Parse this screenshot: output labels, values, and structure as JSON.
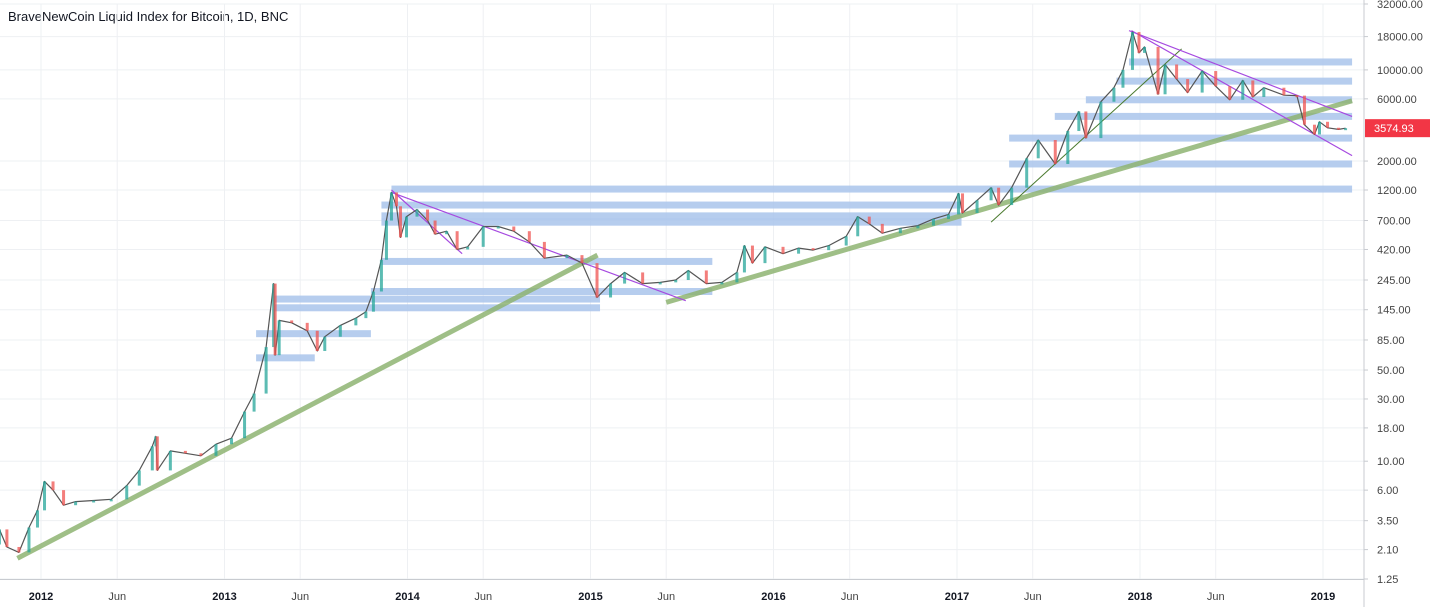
{
  "title": "BraveNewCoin Liquid Index for Bitcoin, 1D, BNC",
  "last_price_label": "3574.93",
  "colors": {
    "up": "#26a69a",
    "down": "#ef5350",
    "price_line": "#555555",
    "price_badge": "#f23645",
    "support": "#8fb473",
    "trend": "#a64ae0",
    "zone": "#a9c4eb",
    "grid": "#eef0f3",
    "axis_text": "#444444"
  },
  "chart_data": {
    "type": "line",
    "scale": "log",
    "ylim": [
      1.25,
      32000
    ],
    "y_ticks": [
      {
        "v": 32000,
        "label": "32000.00"
      },
      {
        "v": 18000,
        "label": "18000.00"
      },
      {
        "v": 10000,
        "label": "10000.00"
      },
      {
        "v": 6000,
        "label": "6000.00"
      },
      {
        "v": 3574.93,
        "label": "3574.93"
      },
      {
        "v": 2000,
        "label": "2000.00"
      },
      {
        "v": 1200,
        "label": "1200.00"
      },
      {
        "v": 700,
        "label": "700.00"
      },
      {
        "v": 420,
        "label": "420.00"
      },
      {
        "v": 245,
        "label": "245.00"
      },
      {
        "v": 145,
        "label": "145.00"
      },
      {
        "v": 85,
        "label": "85.00"
      },
      {
        "v": 50,
        "label": "50.00"
      },
      {
        "v": 30,
        "label": "30.00"
      },
      {
        "v": 18,
        "label": "18.00"
      },
      {
        "v": 10,
        "label": "10.00"
      },
      {
        "v": 6,
        "label": "6.00"
      },
      {
        "v": 3.5,
        "label": "3.50"
      },
      {
        "v": 2.1,
        "label": "2.10"
      },
      {
        "v": 1.25,
        "label": "1.25"
      }
    ],
    "xlim": [
      "2011-09-01",
      "2019-03-01"
    ],
    "x_ticks": [
      {
        "date": "2012-01-01",
        "label": "2012",
        "major": true
      },
      {
        "date": "2012-06-01",
        "label": "Jun",
        "major": false
      },
      {
        "date": "2013-01-01",
        "label": "2013",
        "major": true
      },
      {
        "date": "2013-06-01",
        "label": "Jun",
        "major": false
      },
      {
        "date": "2014-01-01",
        "label": "2014",
        "major": true
      },
      {
        "date": "2014-06-01",
        "label": "Jun",
        "major": false
      },
      {
        "date": "2015-01-01",
        "label": "2015",
        "major": true
      },
      {
        "date": "2015-06-01",
        "label": "Jun",
        "major": false
      },
      {
        "date": "2016-01-01",
        "label": "2016",
        "major": true
      },
      {
        "date": "2016-06-01",
        "label": "Jun",
        "major": false
      },
      {
        "date": "2017-01-01",
        "label": "2017",
        "major": true
      },
      {
        "date": "2017-06-01",
        "label": "Jun",
        "major": false
      },
      {
        "date": "2018-01-01",
        "label": "2018",
        "major": true
      },
      {
        "date": "2018-06-01",
        "label": "Jun",
        "major": false
      },
      {
        "date": "2019-01-01",
        "label": "2019",
        "major": true
      }
    ],
    "grid": true,
    "series": [
      {
        "points": [
          [
            "2011-09-01",
            3.0
          ],
          [
            "2011-09-20",
            2.3
          ],
          [
            "2011-10-10",
            3.0
          ],
          [
            "2011-10-25",
            2.2
          ],
          [
            "2011-11-18",
            2.0
          ],
          [
            "2011-12-08",
            3.1
          ],
          [
            "2011-12-25",
            4.2
          ],
          [
            "2012-01-08",
            7.0
          ],
          [
            "2012-01-25",
            6.0
          ],
          [
            "2012-02-15",
            4.6
          ],
          [
            "2012-03-10",
            4.9
          ],
          [
            "2012-04-15",
            5.0
          ],
          [
            "2012-05-20",
            5.1
          ],
          [
            "2012-06-20",
            6.5
          ],
          [
            "2012-07-15",
            8.5
          ],
          [
            "2012-08-10",
            13.0
          ],
          [
            "2012-08-17",
            15.5
          ],
          [
            "2012-08-20",
            8.5
          ],
          [
            "2012-09-15",
            12.0
          ],
          [
            "2012-10-15",
            11.5
          ],
          [
            "2012-11-15",
            11.0
          ],
          [
            "2012-12-15",
            13.5
          ],
          [
            "2013-01-15",
            15.0
          ],
          [
            "2013-02-10",
            24.0
          ],
          [
            "2013-03-01",
            33.0
          ],
          [
            "2013-03-25",
            75.0
          ],
          [
            "2013-04-09",
            230.0
          ],
          [
            "2013-04-12",
            65.0
          ],
          [
            "2013-04-20",
            120.0
          ],
          [
            "2013-05-15",
            115.0
          ],
          [
            "2013-06-15",
            100.0
          ],
          [
            "2013-07-05",
            70.0
          ],
          [
            "2013-07-20",
            90.0
          ],
          [
            "2013-08-20",
            110.0
          ],
          [
            "2013-09-20",
            125.0
          ],
          [
            "2013-10-10",
            140.0
          ],
          [
            "2013-10-25",
            200.0
          ],
          [
            "2013-11-10",
            350.0
          ],
          [
            "2013-11-20",
            700.0
          ],
          [
            "2013-11-30",
            1150.0
          ],
          [
            "2013-12-10",
            900.0
          ],
          [
            "2013-12-18",
            520.0
          ],
          [
            "2013-12-30",
            750.0
          ],
          [
            "2014-01-20",
            850.0
          ],
          [
            "2014-02-10",
            700.0
          ],
          [
            "2014-02-25",
            550.0
          ],
          [
            "2014-03-20",
            580.0
          ],
          [
            "2014-04-10",
            420.0
          ],
          [
            "2014-05-01",
            440.0
          ],
          [
            "2014-06-01",
            630.0
          ],
          [
            "2014-07-01",
            630.0
          ],
          [
            "2014-08-01",
            580.0
          ],
          [
            "2014-09-01",
            480.0
          ],
          [
            "2014-10-01",
            360.0
          ],
          [
            "2014-11-15",
            380.0
          ],
          [
            "2014-12-15",
            330.0
          ],
          [
            "2015-01-14",
            180.0
          ],
          [
            "2015-02-10",
            230.0
          ],
          [
            "2015-03-10",
            280.0
          ],
          [
            "2015-04-15",
            230.0
          ],
          [
            "2015-05-20",
            235.0
          ],
          [
            "2015-06-20",
            245.0
          ],
          [
            "2015-07-15",
            290.0
          ],
          [
            "2015-08-20",
            230.0
          ],
          [
            "2015-09-20",
            235.0
          ],
          [
            "2015-10-20",
            280.0
          ],
          [
            "2015-11-04",
            450.0
          ],
          [
            "2015-11-20",
            330.0
          ],
          [
            "2015-12-15",
            440.0
          ],
          [
            "2016-01-20",
            390.0
          ],
          [
            "2016-02-20",
            430.0
          ],
          [
            "2016-03-20",
            415.0
          ],
          [
            "2016-04-20",
            450.0
          ],
          [
            "2016-05-25",
            530.0
          ],
          [
            "2016-06-17",
            750.0
          ],
          [
            "2016-07-10",
            660.0
          ],
          [
            "2016-08-05",
            560.0
          ],
          [
            "2016-09-10",
            610.0
          ],
          [
            "2016-10-15",
            640.0
          ],
          [
            "2016-11-15",
            720.0
          ],
          [
            "2016-12-15",
            780.0
          ],
          [
            "2017-01-04",
            1130.0
          ],
          [
            "2017-01-12",
            800.0
          ],
          [
            "2017-02-10",
            1000.0
          ],
          [
            "2017-03-10",
            1250.0
          ],
          [
            "2017-03-25",
            920.0
          ],
          [
            "2017-04-20",
            1250.0
          ],
          [
            "2017-05-20",
            2100.0
          ],
          [
            "2017-06-12",
            2900.0
          ],
          [
            "2017-07-16",
            1900.0
          ],
          [
            "2017-08-10",
            3400.0
          ],
          [
            "2017-09-01",
            4800.0
          ],
          [
            "2017-09-15",
            3000.0
          ],
          [
            "2017-10-15",
            5700.0
          ],
          [
            "2017-11-10",
            7300.0
          ],
          [
            "2017-11-28",
            10000.0
          ],
          [
            "2017-12-17",
            19500.0
          ],
          [
            "2017-12-30",
            13500.0
          ],
          [
            "2018-01-10",
            15000.0
          ],
          [
            "2018-02-06",
            6500.0
          ],
          [
            "2018-02-20",
            11000.0
          ],
          [
            "2018-03-15",
            8500.0
          ],
          [
            "2018-04-06",
            6700.0
          ],
          [
            "2018-05-05",
            9800.0
          ],
          [
            "2018-06-01",
            7500.0
          ],
          [
            "2018-06-29",
            5900.0
          ],
          [
            "2018-07-25",
            8300.0
          ],
          [
            "2018-08-14",
            6200.0
          ],
          [
            "2018-09-05",
            7300.0
          ],
          [
            "2018-10-15",
            6400.0
          ],
          [
            "2018-11-10",
            6350.0
          ],
          [
            "2018-11-25",
            3800.0
          ],
          [
            "2018-12-15",
            3200.0
          ],
          [
            "2018-12-25",
            4000.0
          ],
          [
            "2019-01-10",
            3600.0
          ],
          [
            "2019-02-01",
            3500.0
          ],
          [
            "2019-02-15",
            3574.93
          ]
        ]
      }
    ],
    "drawings": {
      "support_lines": [
        {
          "from": [
            "2011-11-15",
            1.8
          ],
          "to": [
            "2015-01-15",
            380.0
          ],
          "width": 5
        },
        {
          "from": [
            "2015-06-01",
            165.0
          ],
          "to": [
            "2019-02-28",
            5800.0
          ],
          "width": 5
        },
        {
          "from": [
            "2017-03-10",
            680.0
          ],
          "to": [
            "2018-03-25",
            14500.0
          ],
          "width": 1
        }
      ],
      "trend_lines": [
        {
          "from": [
            "2013-11-30",
            1200.0
          ],
          "to": [
            "2014-04-20",
            390.0
          ]
        },
        {
          "from": [
            "2013-11-30",
            1150.0
          ],
          "to": [
            "2015-07-10",
            170.0
          ]
        },
        {
          "from": [
            "2017-12-10",
            20000.0
          ],
          "to": [
            "2019-02-28",
            4400.0
          ]
        },
        {
          "from": [
            "2017-12-15",
            20000.0
          ],
          "to": [
            "2019-02-28",
            2200.0
          ]
        }
      ],
      "zones": [
        {
          "from": "2013-03-05",
          "to": "2013-06-30",
          "y": 62
        },
        {
          "from": "2013-03-05",
          "to": "2013-10-20",
          "y": 95
        },
        {
          "from": "2013-04-10",
          "to": "2015-01-20",
          "y": 175
        },
        {
          "from": "2013-04-10",
          "to": "2015-01-20",
          "y": 150
        },
        {
          "from": "2013-10-20",
          "to": "2015-09-01",
          "y": 200
        },
        {
          "from": "2013-11-10",
          "to": "2015-09-01",
          "y": 340
        },
        {
          "from": "2013-11-10",
          "to": "2017-01-10",
          "y": 680
        },
        {
          "from": "2013-11-10",
          "to": "2017-01-10",
          "y": 760
        },
        {
          "from": "2013-11-10",
          "to": "2017-01-10",
          "y": 920
        },
        {
          "from": "2013-11-30",
          "to": "2019-02-28",
          "y": 1220
        },
        {
          "from": "2017-04-15",
          "to": "2019-02-28",
          "y": 1900
        },
        {
          "from": "2017-04-15",
          "to": "2019-02-28",
          "y": 3000
        },
        {
          "from": "2017-07-15",
          "to": "2019-02-28",
          "y": 4400
        },
        {
          "from": "2017-09-15",
          "to": "2019-02-28",
          "y": 5900
        },
        {
          "from": "2017-11-15",
          "to": "2019-02-28",
          "y": 8200
        },
        {
          "from": "2017-12-10",
          "to": "2019-02-28",
          "y": 11500
        }
      ]
    }
  }
}
